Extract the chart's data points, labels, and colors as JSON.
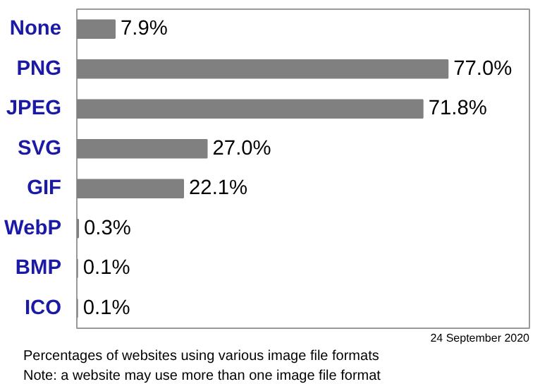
{
  "chart_data": {
    "type": "bar",
    "orientation": "horizontal",
    "categories": [
      "None",
      "PNG",
      "JPEG",
      "SVG",
      "GIF",
      "WebP",
      "BMP",
      "ICO"
    ],
    "values": [
      7.9,
      77.0,
      71.8,
      27.0,
      22.1,
      0.3,
      0.1,
      0.1
    ],
    "value_labels": [
      "7.9%",
      "77.0%",
      "71.8%",
      "27.0%",
      "22.1%",
      "0.3%",
      "0.1%",
      "0.1%"
    ],
    "color": "#808080",
    "grid": false,
    "annotations": [
      "24 September 2020",
      "Percentages of websites using various image file formats",
      "Note: a website may use more than one image file format"
    ]
  }
}
